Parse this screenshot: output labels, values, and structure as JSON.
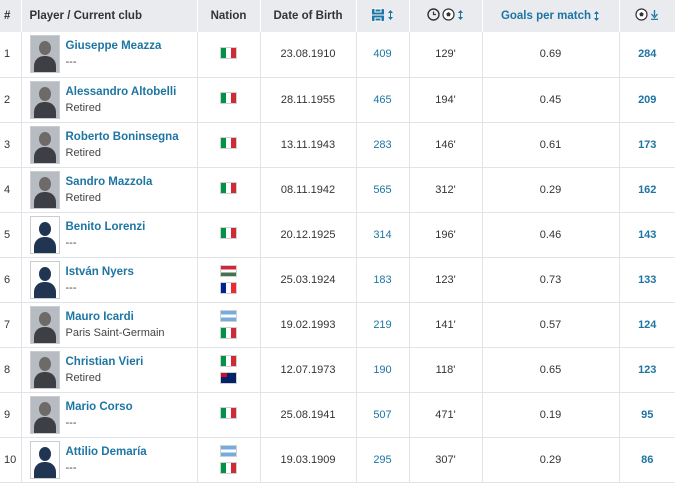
{
  "header": {
    "rank": "#",
    "player": "Player / Current club",
    "nation": "Nation",
    "dob": "Date of Birth",
    "gpm": "Goals per match"
  },
  "rows": [
    {
      "rank": "1",
      "name": "Giuseppe Meazza",
      "club": "---",
      "flags": [
        "italy"
      ],
      "dob": "23.08.1910",
      "apps": "409",
      "mins": "129'",
      "gpm": "0.69",
      "goals": "284"
    },
    {
      "rank": "2",
      "name": "Alessandro Altobelli",
      "club": "Retired",
      "flags": [
        "italy"
      ],
      "dob": "28.11.1955",
      "apps": "465",
      "mins": "194'",
      "gpm": "0.45",
      "goals": "209"
    },
    {
      "rank": "3",
      "name": "Roberto Boninsegna",
      "club": "Retired",
      "flags": [
        "italy"
      ],
      "dob": "13.11.1943",
      "apps": "283",
      "mins": "146'",
      "gpm": "0.61",
      "goals": "173"
    },
    {
      "rank": "4",
      "name": "Sandro Mazzola",
      "club": "Retired",
      "flags": [
        "italy"
      ],
      "dob": "08.11.1942",
      "apps": "565",
      "mins": "312'",
      "gpm": "0.29",
      "goals": "162"
    },
    {
      "rank": "5",
      "name": "Benito Lorenzi",
      "club": "---",
      "flags": [
        "italy"
      ],
      "dob": "20.12.1925",
      "apps": "314",
      "mins": "196'",
      "gpm": "0.46",
      "goals": "143"
    },
    {
      "rank": "6",
      "name": "István Nyers",
      "club": "---",
      "flags": [
        "hungary",
        "france"
      ],
      "dob": "25.03.1924",
      "apps": "183",
      "mins": "123'",
      "gpm": "0.73",
      "goals": "133"
    },
    {
      "rank": "7",
      "name": "Mauro Icardi",
      "club": "Paris Saint-Germain",
      "flags": [
        "argentina",
        "italy"
      ],
      "dob": "19.02.1993",
      "apps": "219",
      "mins": "141'",
      "gpm": "0.57",
      "goals": "124"
    },
    {
      "rank": "8",
      "name": "Christian Vieri",
      "club": "Retired",
      "flags": [
        "italy",
        "australia"
      ],
      "dob": "12.07.1973",
      "apps": "190",
      "mins": "118'",
      "gpm": "0.65",
      "goals": "123"
    },
    {
      "rank": "9",
      "name": "Mario Corso",
      "club": "---",
      "flags": [
        "italy"
      ],
      "dob": "25.08.1941",
      "apps": "507",
      "mins": "471'",
      "gpm": "0.19",
      "goals": "95"
    },
    {
      "rank": "10",
      "name": "Attilio Demaría",
      "club": "---",
      "flags": [
        "argentina",
        "italy"
      ],
      "dob": "19.03.1909",
      "apps": "295",
      "mins": "307'",
      "gpm": "0.29",
      "goals": "86"
    }
  ],
  "photo_styles": [
    "photo",
    "photo",
    "photo",
    "photo",
    "silhouette",
    "silhouette",
    "photo",
    "photo",
    "photo",
    "silhouette"
  ],
  "colors": {
    "link": "#1d75a3",
    "header_bg": "#e9ebee",
    "border": "#e0e3e7"
  },
  "icons": {
    "apps_header": "pitch-icon",
    "mins_header": "clock-ball-icon",
    "goals_header": "ball-icon",
    "sort": "sort-arrows-icon",
    "sort_desc": "sort-desc-icon"
  }
}
